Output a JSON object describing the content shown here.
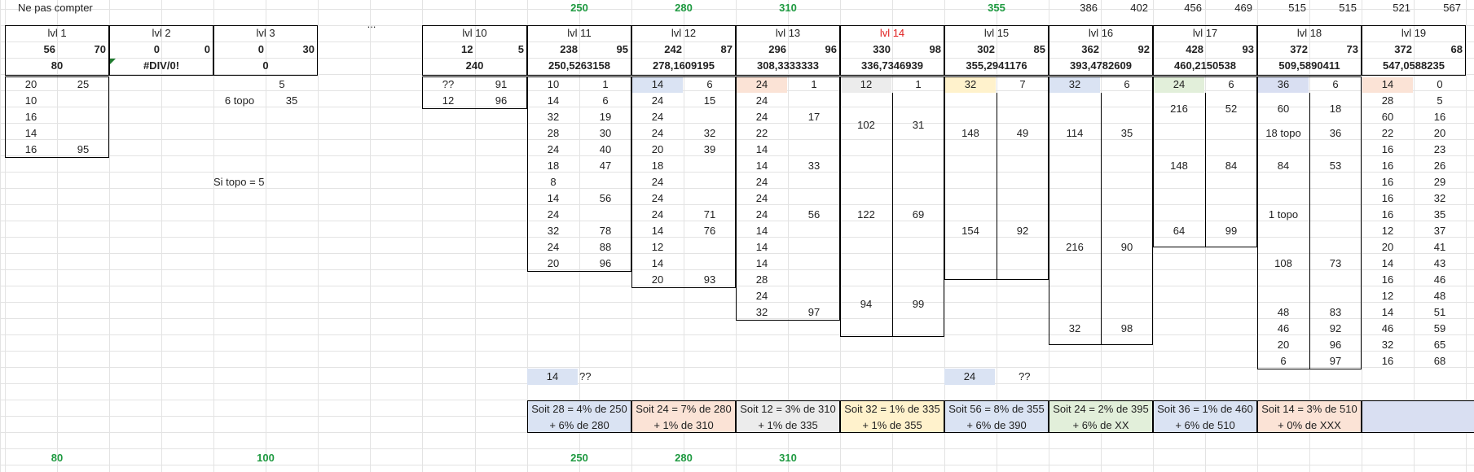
{
  "sheet": {
    "top_label": "Ne pas compter",
    "dots": "...",
    "si_topo": "Si topo = 5",
    "top_totals": [
      "250",
      "280",
      "310",
      "355"
    ],
    "top_pairs": [
      [
        "386",
        "402"
      ],
      [
        "456",
        "469"
      ],
      [
        "515",
        "515"
      ],
      [
        "521",
        "567"
      ]
    ],
    "bottom_totals": [
      "80",
      "100",
      "250",
      "280",
      "310"
    ],
    "lvl14_color": "#e02020",
    "green_color": "#1f9a41",
    "levels": [
      {
        "name": "lvl 1",
        "a": "56",
        "b": "70",
        "total": "80"
      },
      {
        "name": "lvl 2",
        "a": "0",
        "b": "0",
        "total": "#DIV/0!"
      },
      {
        "name": "lvl 3",
        "a": "0",
        "b": "30",
        "total": "0"
      },
      {
        "name": "lvl 10",
        "a": "12",
        "b": "5",
        "total": "240"
      },
      {
        "name": "lvl 11",
        "a": "238",
        "b": "95",
        "total": "250,5263158"
      },
      {
        "name": "lvl 12",
        "a": "242",
        "b": "87",
        "total": "278,1609195"
      },
      {
        "name": "lvl 13",
        "a": "296",
        "b": "96",
        "total": "308,3333333"
      },
      {
        "name": "lvl 14",
        "a": "330",
        "b": "98",
        "total": "336,7346939"
      },
      {
        "name": "lvl 15",
        "a": "302",
        "b": "85",
        "total": "355,2941176"
      },
      {
        "name": "lvl 16",
        "a": "362",
        "b": "92",
        "total": "393,4782609"
      },
      {
        "name": "lvl 17",
        "a": "428",
        "b": "93",
        "total": "460,2150538"
      },
      {
        "name": "lvl 18",
        "a": "372",
        "b": "73",
        "total": "509,5890411"
      },
      {
        "name": "lvl 19",
        "a": "372",
        "b": "68",
        "total": "547,0588235"
      }
    ],
    "lvl1_rows": [
      [
        "20",
        "25"
      ],
      [
        "10",
        ""
      ],
      [
        "16",
        ""
      ],
      [
        "14",
        ""
      ],
      [
        "16",
        "95"
      ]
    ],
    "lvl3_rows": [
      [
        "",
        "5"
      ],
      [
        "6 topo",
        "35"
      ]
    ],
    "lvl10_rows": [
      [
        "??",
        "91"
      ],
      [
        "12",
        "96"
      ]
    ],
    "lvl11_rows": [
      [
        "10",
        "1"
      ],
      [
        "14",
        "6"
      ],
      [
        "32",
        "19"
      ],
      [
        "28",
        "30"
      ],
      [
        "24",
        "40"
      ],
      [
        "18",
        "47"
      ],
      [
        "8",
        ""
      ],
      [
        "14",
        "56"
      ],
      [
        "24",
        ""
      ],
      [
        "32",
        "78"
      ],
      [
        "24",
        "88"
      ],
      [
        "20",
        "96"
      ]
    ],
    "lvl12_rows": [
      [
        "14",
        "6"
      ],
      [
        "24",
        "15"
      ],
      [
        "24",
        ""
      ],
      [
        "24",
        "32"
      ],
      [
        "20",
        "39"
      ],
      [
        "18",
        ""
      ],
      [
        "24",
        ""
      ],
      [
        "24",
        ""
      ],
      [
        "24",
        "71"
      ],
      [
        "14",
        "76"
      ],
      [
        "12",
        ""
      ],
      [
        "14",
        ""
      ],
      [
        "20",
        "93"
      ]
    ],
    "lvl13_rows": [
      [
        "24",
        "1"
      ],
      [
        "24",
        ""
      ],
      [
        "24",
        "17"
      ],
      [
        "22",
        ""
      ],
      [
        "14",
        ""
      ],
      [
        "14",
        "33"
      ],
      [
        "24",
        ""
      ],
      [
        "24",
        ""
      ],
      [
        "24",
        "56"
      ],
      [
        "14",
        ""
      ],
      [
        "14",
        ""
      ],
      [
        "14",
        ""
      ],
      [
        "28",
        ""
      ],
      [
        "24",
        ""
      ],
      [
        "32",
        "97"
      ]
    ],
    "lvl14_rows": [
      [
        "12",
        "1"
      ],
      [
        "102",
        "31"
      ],
      [
        "122",
        "69"
      ],
      [
        "94",
        "99"
      ]
    ],
    "lvl15_rows": [
      [
        "32",
        "7"
      ],
      [
        "148",
        "49"
      ],
      [
        "154",
        "92"
      ]
    ],
    "lvl16_rows": [
      [
        "32",
        "6"
      ],
      [
        "114",
        "35"
      ],
      [
        "216",
        "90"
      ],
      [
        "32",
        "98"
      ]
    ],
    "lvl17_rows": [
      [
        "24",
        "6"
      ],
      [
        "216",
        "52"
      ],
      [
        "148",
        "84"
      ],
      [
        "64",
        "99"
      ]
    ],
    "lvl18_rows": [
      [
        "36",
        "6"
      ],
      [
        "60",
        "18"
      ],
      [
        "18 topo",
        "36"
      ],
      [
        "84",
        "53"
      ],
      [
        "1 topo",
        ""
      ],
      [
        "108",
        "73"
      ],
      [
        "48",
        "83"
      ],
      [
        "46",
        "92"
      ],
      [
        "20",
        "96"
      ],
      [
        "6",
        "97"
      ]
    ],
    "lvl19_rows": [
      [
        "14",
        "0"
      ],
      [
        "28",
        "5"
      ],
      [
        "60",
        "16"
      ],
      [
        "22",
        "20"
      ],
      [
        "16",
        "23"
      ],
      [
        "16",
        "26"
      ],
      [
        "16",
        "29"
      ],
      [
        "16",
        "32"
      ],
      [
        "16",
        "35"
      ],
      [
        "12",
        "37"
      ],
      [
        "20",
        "41"
      ],
      [
        "14",
        "43"
      ],
      [
        "16",
        "46"
      ],
      [
        "12",
        "48"
      ],
      [
        "14",
        "51"
      ],
      [
        "46",
        "59"
      ],
      [
        "32",
        "65"
      ],
      [
        "16",
        "68"
      ]
    ],
    "extra_left": [
      "14",
      "??"
    ],
    "extra_right": [
      "24",
      "??"
    ],
    "notes": [
      {
        "l1": "Soit 28 = 4% de 250",
        "l2": "+ 6% de 280"
      },
      {
        "l1": "Soit 24 = 7% de 280",
        "l2": "+ 1% de 310"
      },
      {
        "l1": "Soit 12 = 3% de 310",
        "l2": "+ 1% de 335"
      },
      {
        "l1": "Soit 32 = 1% de 335",
        "l2": "+ 1% de 355"
      },
      {
        "l1": "Soit 56 = 8% de 355",
        "l2": "+ 6% de 390"
      },
      {
        "l1": "Soit 24 = 2% de 395",
        "l2": "+ 6% de XX"
      },
      {
        "l1": "Soit 36 = 1% de 460",
        "l2": "+ 6% de 510"
      },
      {
        "l1": "Soit 14 = 3% de 510",
        "l2": "+ 0% de XXX"
      },
      {
        "l1": "",
        "l2": ""
      }
    ],
    "fills": {
      "blue": "#dae3f3",
      "peach": "#fbe3d6",
      "gray": "#ececec",
      "yellow": "#fff2cc",
      "green": "#e2efda",
      "lavender": "#d9dff2"
    }
  }
}
